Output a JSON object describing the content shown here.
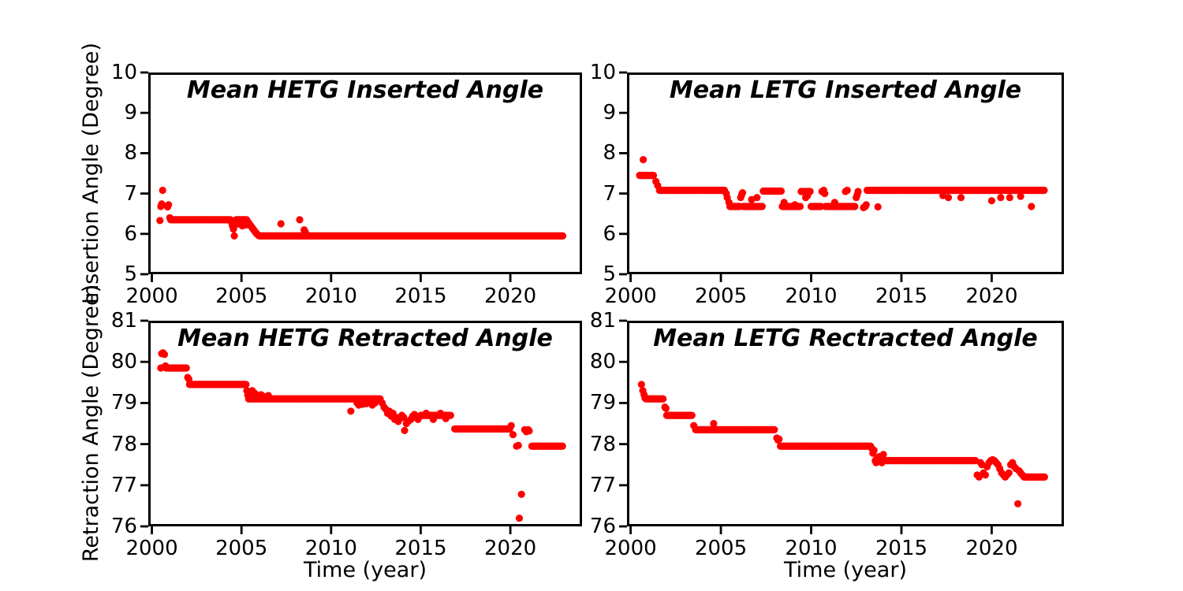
{
  "figure": {
    "background": "#ffffff",
    "marker_color": "#ff0000",
    "axis_color": "#000000"
  },
  "chart_data": [
    {
      "type": "scatter",
      "title": "Mean HETG Inserted Angle",
      "ylabel": "Insertion Angle (Degree)",
      "xlabel": "",
      "xlim": [
        1999.8,
        2024.0
      ],
      "ylim": [
        5,
        10
      ],
      "xticks": [
        2000,
        2005,
        2010,
        2015,
        2020
      ],
      "yticks": [
        5,
        6,
        7,
        8,
        9,
        10
      ],
      "color": "#ff0000",
      "grid": false,
      "runs": [
        {
          "x0": 2001.05,
          "x1": 2004.4,
          "y": 6.35,
          "dx": 0.045
        },
        {
          "x0": 2004.7,
          "x1": 2005.3,
          "y": 6.35,
          "dx": 0.045
        },
        {
          "x0": 2006.0,
          "x1": 2022.95,
          "y": 5.95,
          "dx": 0.045
        }
      ],
      "points": [
        [
          2000.45,
          6.33
        ],
        [
          2000.5,
          6.68
        ],
        [
          2000.55,
          6.74
        ],
        [
          2000.6,
          7.08
        ],
        [
          2000.88,
          6.67
        ],
        [
          2000.93,
          6.72
        ],
        [
          2001.0,
          6.4
        ],
        [
          2004.45,
          6.28
        ],
        [
          2004.5,
          6.2
        ],
        [
          2004.55,
          6.12
        ],
        [
          2004.6,
          5.95
        ],
        [
          2004.65,
          6.22
        ],
        [
          2004.68,
          6.3
        ],
        [
          2004.85,
          6.25
        ],
        [
          2004.95,
          6.3
        ],
        [
          2005.05,
          6.2
        ],
        [
          2005.15,
          6.28
        ],
        [
          2005.25,
          6.22
        ],
        [
          2005.35,
          6.3
        ],
        [
          2005.4,
          6.27
        ],
        [
          2005.45,
          6.24
        ],
        [
          2005.5,
          6.21
        ],
        [
          2005.55,
          6.18
        ],
        [
          2005.6,
          6.15
        ],
        [
          2005.65,
          6.12
        ],
        [
          2005.7,
          6.09
        ],
        [
          2005.75,
          6.06
        ],
        [
          2005.8,
          6.03
        ],
        [
          2005.85,
          6.0
        ],
        [
          2005.9,
          5.98
        ],
        [
          2005.95,
          5.96
        ],
        [
          2007.2,
          6.25
        ],
        [
          2008.25,
          6.35
        ],
        [
          2008.5,
          6.1
        ],
        [
          2008.55,
          6.05
        ],
        [
          2008.6,
          6.0
        ]
      ]
    },
    {
      "type": "scatter",
      "title": "Mean LETG Inserted Angle",
      "ylabel": "",
      "xlabel": "",
      "xlim": [
        1999.8,
        2024.0
      ],
      "ylim": [
        5,
        10
      ],
      "xticks": [
        2000,
        2005,
        2010,
        2015,
        2020
      ],
      "yticks": [
        5,
        6,
        7,
        8,
        9,
        10
      ],
      "color": "#ff0000",
      "grid": false,
      "runs": [
        {
          "x0": 2000.5,
          "x1": 2001.3,
          "y": 7.45,
          "dx": 0.045
        },
        {
          "x0": 2001.6,
          "x1": 2005.2,
          "y": 7.08,
          "dx": 0.045
        },
        {
          "x0": 2005.5,
          "x1": 2006.05,
          "y": 6.68,
          "dx": 0.045
        },
        {
          "x0": 2006.25,
          "x1": 2007.3,
          "y": 6.68,
          "dx": 0.045
        },
        {
          "x0": 2007.35,
          "x1": 2008.35,
          "y": 7.06,
          "dx": 0.045
        },
        {
          "x0": 2008.4,
          "x1": 2009.4,
          "y": 6.68,
          "dx": 0.045
        },
        {
          "x0": 2009.45,
          "x1": 2009.95,
          "y": 7.05,
          "dx": 0.045
        },
        {
          "x0": 2010.0,
          "x1": 2010.55,
          "y": 6.68,
          "dx": 0.045
        },
        {
          "x0": 2010.8,
          "x1": 2012.45,
          "y": 6.68,
          "dx": 0.045
        },
        {
          "x0": 2013.1,
          "x1": 2022.95,
          "y": 7.08,
          "dx": 0.045
        }
      ],
      "points": [
        [
          2000.7,
          7.84
        ],
        [
          2001.4,
          7.3
        ],
        [
          2001.5,
          7.2
        ],
        [
          2005.3,
          7.0
        ],
        [
          2005.35,
          6.9
        ],
        [
          2005.45,
          6.78
        ],
        [
          2006.1,
          6.9
        ],
        [
          2006.15,
          6.97
        ],
        [
          2006.2,
          7.02
        ],
        [
          2006.7,
          6.85
        ],
        [
          2007.0,
          6.9
        ],
        [
          2008.5,
          6.78
        ],
        [
          2009.1,
          6.72
        ],
        [
          2009.7,
          6.9
        ],
        [
          2009.8,
          6.95
        ],
        [
          2010.6,
          7.05
        ],
        [
          2010.7,
          7.08
        ],
        [
          2010.75,
          7.0
        ],
        [
          2011.3,
          6.78
        ],
        [
          2011.9,
          7.05
        ],
        [
          2012.0,
          7.08
        ],
        [
          2012.5,
          6.9
        ],
        [
          2012.55,
          6.97
        ],
        [
          2012.6,
          7.05
        ],
        [
          2012.9,
          6.65
        ],
        [
          2013.0,
          6.68
        ],
        [
          2013.05,
          6.72
        ],
        [
          2013.7,
          6.67
        ],
        [
          2017.3,
          6.95
        ],
        [
          2017.6,
          6.9
        ],
        [
          2018.3,
          6.9
        ],
        [
          2020.0,
          6.82
        ],
        [
          2020.5,
          6.9
        ],
        [
          2021.0,
          6.9
        ],
        [
          2021.6,
          6.93
        ],
        [
          2022.2,
          6.68
        ]
      ]
    },
    {
      "type": "scatter",
      "title": "Mean HETG Retracted Angle",
      "ylabel": "Retraction Angle (Degree)",
      "xlabel": "Time (year)",
      "xlim": [
        1999.8,
        2024.0
      ],
      "ylim": [
        76,
        81
      ],
      "xticks": [
        2000,
        2005,
        2010,
        2015,
        2020
      ],
      "yticks": [
        76,
        77,
        78,
        79,
        80,
        81
      ],
      "color": "#ff0000",
      "grid": false,
      "runs": [
        {
          "x0": 2000.8,
          "x1": 2001.95,
          "y": 79.85,
          "dx": 0.045
        },
        {
          "x0": 2002.1,
          "x1": 2005.25,
          "y": 79.45,
          "dx": 0.045
        },
        {
          "x0": 2005.4,
          "x1": 2012.75,
          "y": 79.1,
          "dx": 0.045
        },
        {
          "x0": 2015.0,
          "x1": 2016.7,
          "y": 78.7,
          "dx": 0.045
        },
        {
          "x0": 2016.9,
          "x1": 2020.0,
          "y": 78.37,
          "dx": 0.045
        },
        {
          "x0": 2021.2,
          "x1": 2022.95,
          "y": 77.95,
          "dx": 0.045
        }
      ],
      "points": [
        [
          2000.5,
          79.85
        ],
        [
          2000.55,
          80.2
        ],
        [
          2000.62,
          80.22
        ],
        [
          2000.7,
          80.18
        ],
        [
          2000.76,
          79.9
        ],
        [
          2002.0,
          79.62
        ],
        [
          2002.06,
          79.58
        ],
        [
          2005.3,
          79.3
        ],
        [
          2005.35,
          79.2
        ],
        [
          2005.6,
          79.3
        ],
        [
          2005.7,
          79.25
        ],
        [
          2005.85,
          79.2
        ],
        [
          2006.1,
          79.2
        ],
        [
          2006.3,
          79.15
        ],
        [
          2006.5,
          79.18
        ],
        [
          2011.1,
          78.8
        ],
        [
          2011.45,
          79.0
        ],
        [
          2011.55,
          78.95
        ],
        [
          2011.65,
          79.02
        ],
        [
          2011.75,
          78.97
        ],
        [
          2011.85,
          79.03
        ],
        [
          2011.95,
          78.98
        ],
        [
          2012.05,
          79.05
        ],
        [
          2012.15,
          79.0
        ],
        [
          2012.3,
          78.95
        ],
        [
          2012.45,
          79.0
        ],
        [
          2012.85,
          79.0
        ],
        [
          2012.95,
          78.9
        ],
        [
          2013.05,
          78.85
        ],
        [
          2013.15,
          78.75
        ],
        [
          2013.25,
          78.8
        ],
        [
          2013.35,
          78.68
        ],
        [
          2013.45,
          78.75
        ],
        [
          2013.55,
          78.6
        ],
        [
          2013.65,
          78.65
        ],
        [
          2013.75,
          78.55
        ],
        [
          2013.85,
          78.62
        ],
        [
          2013.95,
          78.7
        ],
        [
          2014.05,
          78.65
        ],
        [
          2014.1,
          78.33
        ],
        [
          2014.2,
          78.5
        ],
        [
          2014.3,
          78.55
        ],
        [
          2014.45,
          78.6
        ],
        [
          2014.55,
          78.68
        ],
        [
          2014.65,
          78.72
        ],
        [
          2014.75,
          78.65
        ],
        [
          2014.85,
          78.6
        ],
        [
          2015.3,
          78.75
        ],
        [
          2015.7,
          78.6
        ],
        [
          2016.1,
          78.75
        ],
        [
          2016.4,
          78.62
        ],
        [
          2020.05,
          78.45
        ],
        [
          2020.15,
          78.23
        ],
        [
          2020.35,
          77.95
        ],
        [
          2020.45,
          77.97
        ],
        [
          2020.5,
          76.2
        ],
        [
          2020.62,
          76.78
        ],
        [
          2020.8,
          78.35
        ],
        [
          2020.9,
          78.3
        ],
        [
          2021.0,
          78.35
        ],
        [
          2021.05,
          78.32
        ]
      ]
    },
    {
      "type": "scatter",
      "title": "Mean LETG Rectracted Angle",
      "ylabel": "",
      "xlabel": "Time (year)",
      "xlim": [
        1999.8,
        2024.0
      ],
      "ylim": [
        76,
        81
      ],
      "xticks": [
        2000,
        2005,
        2010,
        2015,
        2020
      ],
      "yticks": [
        76,
        77,
        78,
        79,
        80,
        81
      ],
      "color": "#ff0000",
      "grid": false,
      "runs": [
        {
          "x0": 2000.85,
          "x1": 2001.8,
          "y": 79.1,
          "dx": 0.045
        },
        {
          "x0": 2002.0,
          "x1": 2003.4,
          "y": 78.7,
          "dx": 0.045
        },
        {
          "x0": 2003.6,
          "x1": 2008.0,
          "y": 78.35,
          "dx": 0.045
        },
        {
          "x0": 2008.3,
          "x1": 2013.3,
          "y": 77.95,
          "dx": 0.045
        },
        {
          "x0": 2014.15,
          "x1": 2019.1,
          "y": 77.6,
          "dx": 0.045
        },
        {
          "x0": 2021.8,
          "x1": 2022.95,
          "y": 77.2,
          "dx": 0.045
        }
      ],
      "points": [
        [
          2000.6,
          79.45
        ],
        [
          2000.68,
          79.3
        ],
        [
          2000.75,
          79.2
        ],
        [
          2000.8,
          79.12
        ],
        [
          2001.9,
          78.9
        ],
        [
          2001.96,
          78.87
        ],
        [
          2003.5,
          78.45
        ],
        [
          2004.6,
          78.5
        ],
        [
          2008.1,
          78.15
        ],
        [
          2008.16,
          78.1
        ],
        [
          2008.22,
          78.12
        ],
        [
          2013.35,
          77.9
        ],
        [
          2013.42,
          77.78
        ],
        [
          2013.48,
          77.85
        ],
        [
          2013.55,
          77.6
        ],
        [
          2013.6,
          77.55
        ],
        [
          2013.65,
          77.65
        ],
        [
          2013.72,
          77.58
        ],
        [
          2013.78,
          77.7
        ],
        [
          2013.85,
          77.62
        ],
        [
          2013.92,
          77.55
        ],
        [
          2014.0,
          77.75
        ],
        [
          2014.05,
          77.6
        ],
        [
          2019.2,
          77.25
        ],
        [
          2019.3,
          77.2
        ],
        [
          2019.38,
          77.55
        ],
        [
          2019.46,
          77.5
        ],
        [
          2019.55,
          77.3
        ],
        [
          2019.65,
          77.25
        ],
        [
          2019.75,
          77.45
        ],
        [
          2019.85,
          77.55
        ],
        [
          2019.95,
          77.6
        ],
        [
          2020.05,
          77.62
        ],
        [
          2020.15,
          77.6
        ],
        [
          2020.25,
          77.55
        ],
        [
          2020.35,
          77.5
        ],
        [
          2020.45,
          77.4
        ],
        [
          2020.55,
          77.3
        ],
        [
          2020.65,
          77.25
        ],
        [
          2020.75,
          77.2
        ],
        [
          2020.85,
          77.25
        ],
        [
          2020.95,
          77.3
        ],
        [
          2021.05,
          77.5
        ],
        [
          2021.15,
          77.55
        ],
        [
          2021.25,
          77.45
        ],
        [
          2021.35,
          77.4
        ],
        [
          2021.45,
          76.55
        ],
        [
          2021.52,
          77.35
        ],
        [
          2021.6,
          77.3
        ],
        [
          2021.7,
          77.25
        ],
        [
          2021.76,
          77.22
        ]
      ]
    }
  ]
}
